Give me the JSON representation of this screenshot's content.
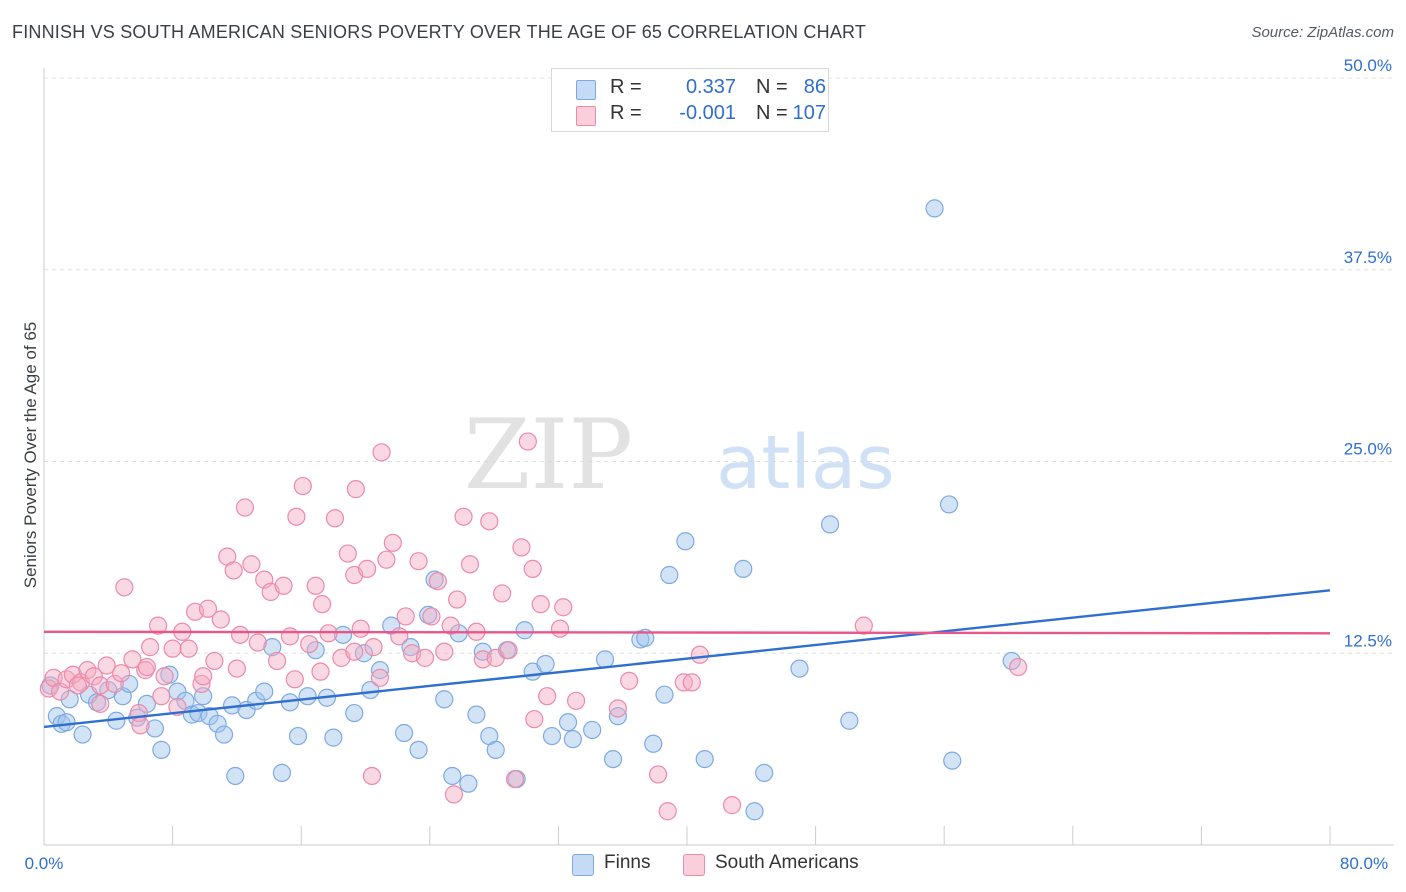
{
  "header": {
    "title": "FINNISH VS SOUTH AMERICAN SENIORS POVERTY OVER THE AGE OF 65 CORRELATION CHART",
    "source": "Source: ZipAtlas.com"
  },
  "watermark": {
    "zip": "ZIP",
    "atlas": "atlas"
  },
  "legend": {
    "rows": [
      {
        "r_label": "R =",
        "r_value": "0.337",
        "n_label": "N =",
        "n_value": "86",
        "color": "#9dc0ec"
      },
      {
        "r_label": "R =",
        "r_value": "-0.001",
        "n_label": "N =",
        "n_value": "107",
        "color": "#f4a8c0"
      }
    ]
  },
  "bottom_legend": [
    {
      "label": "Finns",
      "color": "#9dc0ec"
    },
    {
      "label": "South Americans",
      "color": "#f4a8c0"
    }
  ],
  "chart_data": {
    "type": "scatter",
    "ylabel": "Seniors Poverty Over the Age of 65",
    "xlim": [
      0,
      80
    ],
    "ylim": [
      0,
      50
    ],
    "x_tick_labels": [
      "0.0%",
      "80.0%"
    ],
    "y_ticks": [
      12.5,
      25.0,
      37.5,
      50.0
    ],
    "y_tick_labels": [
      "12.5%",
      "25.0%",
      "37.5%",
      "50.0%"
    ],
    "grid": true,
    "series": [
      {
        "name": "Finns",
        "color": "#9dc0ec",
        "line_color": "#2f6fcf",
        "trend": {
          "x": [
            0,
            80
          ],
          "y": [
            7.7,
            16.6
          ]
        },
        "points": [
          [
            0.4,
            10.4
          ],
          [
            0.8,
            8.4
          ],
          [
            1.1,
            7.9
          ],
          [
            1.4,
            8.0
          ],
          [
            1.6,
            9.5
          ],
          [
            2.4,
            7.2
          ],
          [
            2.8,
            9.8
          ],
          [
            3.3,
            9.3
          ],
          [
            4.0,
            10.1
          ],
          [
            4.5,
            8.1
          ],
          [
            4.9,
            9.7
          ],
          [
            5.3,
            10.5
          ],
          [
            5.8,
            8.3
          ],
          [
            6.4,
            9.2
          ],
          [
            6.9,
            7.6
          ],
          [
            7.3,
            6.2
          ],
          [
            7.8,
            11.1
          ],
          [
            8.3,
            10.0
          ],
          [
            8.8,
            9.4
          ],
          [
            9.2,
            8.5
          ],
          [
            9.6,
            8.6
          ],
          [
            10.3,
            8.4
          ],
          [
            10.8,
            7.9
          ],
          [
            11.2,
            7.2
          ],
          [
            11.7,
            9.1
          ],
          [
            11.9,
            4.5
          ],
          [
            12.6,
            8.8
          ],
          [
            13.2,
            9.4
          ],
          [
            13.7,
            10.0
          ],
          [
            14.2,
            12.9
          ],
          [
            14.8,
            4.7
          ],
          [
            15.3,
            9.3
          ],
          [
            15.8,
            7.1
          ],
          [
            16.4,
            9.7
          ],
          [
            16.9,
            12.7
          ],
          [
            17.6,
            9.6
          ],
          [
            18.0,
            7.0
          ],
          [
            18.6,
            13.7
          ],
          [
            19.3,
            8.6
          ],
          [
            19.9,
            12.5
          ],
          [
            20.3,
            10.1
          ],
          [
            20.9,
            11.4
          ],
          [
            21.6,
            14.3
          ],
          [
            22.4,
            7.3
          ],
          [
            22.8,
            12.9
          ],
          [
            23.3,
            6.2
          ],
          [
            23.9,
            15.0
          ],
          [
            24.3,
            17.3
          ],
          [
            24.9,
            9.5
          ],
          [
            25.4,
            4.5
          ],
          [
            25.8,
            13.8
          ],
          [
            26.4,
            4.0
          ],
          [
            26.9,
            8.5
          ],
          [
            27.3,
            12.6
          ],
          [
            27.7,
            7.1
          ],
          [
            28.1,
            6.2
          ],
          [
            28.8,
            12.7
          ],
          [
            29.4,
            4.3
          ],
          [
            29.9,
            14.0
          ],
          [
            30.4,
            11.3
          ],
          [
            31.2,
            11.8
          ],
          [
            31.6,
            7.1
          ],
          [
            32.6,
            8.0
          ],
          [
            32.9,
            6.9
          ],
          [
            34.1,
            7.5
          ],
          [
            34.9,
            12.1
          ],
          [
            35.4,
            5.6
          ],
          [
            35.7,
            8.4
          ],
          [
            37.1,
            13.4
          ],
          [
            37.4,
            13.5
          ],
          [
            37.9,
            6.6
          ],
          [
            38.6,
            9.8
          ],
          [
            38.9,
            17.6
          ],
          [
            39.9,
            19.8
          ],
          [
            41.1,
            5.6
          ],
          [
            43.5,
            18.0
          ],
          [
            44.8,
            4.7
          ],
          [
            47.0,
            11.5
          ],
          [
            48.9,
            20.9
          ],
          [
            50.1,
            8.1
          ],
          [
            55.4,
            41.5
          ],
          [
            56.3,
            22.2
          ],
          [
            56.5,
            5.5
          ],
          [
            60.2,
            12.0
          ],
          [
            44.2,
            2.2
          ],
          [
            9.9,
            9.7
          ]
        ]
      },
      {
        "name": "South Americans",
        "color": "#f4a8c0",
        "line_color": "#e8568a",
        "trend": {
          "x": [
            0,
            80
          ],
          "y": [
            13.9,
            13.8
          ]
        },
        "points": [
          [
            0.3,
            10.2
          ],
          [
            0.6,
            10.9
          ],
          [
            1.0,
            10.0
          ],
          [
            1.4,
            10.8
          ],
          [
            1.8,
            11.1
          ],
          [
            2.3,
            10.6
          ],
          [
            2.7,
            11.4
          ],
          [
            3.1,
            11.0
          ],
          [
            3.5,
            10.4
          ],
          [
            3.9,
            11.7
          ],
          [
            4.4,
            10.5
          ],
          [
            4.8,
            11.2
          ],
          [
            5.0,
            16.8
          ],
          [
            5.5,
            12.1
          ],
          [
            5.9,
            8.6
          ],
          [
            6.3,
            11.4
          ],
          [
            6.6,
            12.9
          ],
          [
            7.1,
            14.3
          ],
          [
            7.5,
            11.0
          ],
          [
            8.0,
            12.8
          ],
          [
            8.3,
            9.0
          ],
          [
            8.6,
            13.9
          ],
          [
            9.0,
            12.8
          ],
          [
            9.4,
            15.2
          ],
          [
            9.8,
            10.5
          ],
          [
            10.2,
            15.4
          ],
          [
            10.6,
            12.0
          ],
          [
            11.0,
            14.7
          ],
          [
            11.4,
            18.8
          ],
          [
            11.8,
            17.9
          ],
          [
            12.2,
            13.7
          ],
          [
            12.5,
            22.0
          ],
          [
            12.9,
            18.3
          ],
          [
            13.3,
            13.2
          ],
          [
            13.7,
            17.3
          ],
          [
            14.1,
            16.5
          ],
          [
            14.5,
            12.0
          ],
          [
            14.9,
            16.9
          ],
          [
            15.3,
            13.6
          ],
          [
            15.7,
            21.4
          ],
          [
            16.1,
            23.4
          ],
          [
            16.5,
            13.1
          ],
          [
            16.9,
            16.9
          ],
          [
            17.3,
            15.7
          ],
          [
            17.7,
            13.8
          ],
          [
            18.1,
            21.3
          ],
          [
            18.5,
            12.2
          ],
          [
            18.9,
            19.0
          ],
          [
            19.3,
            17.6
          ],
          [
            19.7,
            14.1
          ],
          [
            20.1,
            18.0
          ],
          [
            20.5,
            12.9
          ],
          [
            20.9,
            10.9
          ],
          [
            21.3,
            18.6
          ],
          [
            21.7,
            19.7
          ],
          [
            22.1,
            13.6
          ],
          [
            22.5,
            14.9
          ],
          [
            22.9,
            12.5
          ],
          [
            23.3,
            18.5
          ],
          [
            23.7,
            12.2
          ],
          [
            24.1,
            14.9
          ],
          [
            24.5,
            17.2
          ],
          [
            24.9,
            12.6
          ],
          [
            25.3,
            14.3
          ],
          [
            25.7,
            16.0
          ],
          [
            26.1,
            21.4
          ],
          [
            26.5,
            18.3
          ],
          [
            26.9,
            13.9
          ],
          [
            27.3,
            12.1
          ],
          [
            27.7,
            21.1
          ],
          [
            28.1,
            12.2
          ],
          [
            28.5,
            16.4
          ],
          [
            28.9,
            12.7
          ],
          [
            29.3,
            4.3
          ],
          [
            29.7,
            19.4
          ],
          [
            30.1,
            26.3
          ],
          [
            30.5,
            8.2
          ],
          [
            30.9,
            15.7
          ],
          [
            31.3,
            9.7
          ],
          [
            32.1,
            14.1
          ],
          [
            32.3,
            15.5
          ],
          [
            35.7,
            8.9
          ],
          [
            36.4,
            10.7
          ],
          [
            38.2,
            4.6
          ],
          [
            38.8,
            2.2
          ],
          [
            39.8,
            10.6
          ],
          [
            40.3,
            10.6
          ],
          [
            40.8,
            12.4
          ],
          [
            42.8,
            2.6
          ],
          [
            51.0,
            14.3
          ],
          [
            60.6,
            11.6
          ],
          [
            20.4,
            4.5
          ],
          [
            25.5,
            3.3
          ],
          [
            21.0,
            25.6
          ],
          [
            19.4,
            23.2
          ],
          [
            30.4,
            18.0
          ],
          [
            33.1,
            9.4
          ],
          [
            6.4,
            11.6
          ],
          [
            2.1,
            10.4
          ],
          [
            3.5,
            9.2
          ],
          [
            7.3,
            9.7
          ],
          [
            9.9,
            11.0
          ],
          [
            17.2,
            11.3
          ],
          [
            15.6,
            10.8
          ],
          [
            19.3,
            12.6
          ],
          [
            12.0,
            11.5
          ],
          [
            6.0,
            7.8
          ]
        ]
      }
    ]
  }
}
